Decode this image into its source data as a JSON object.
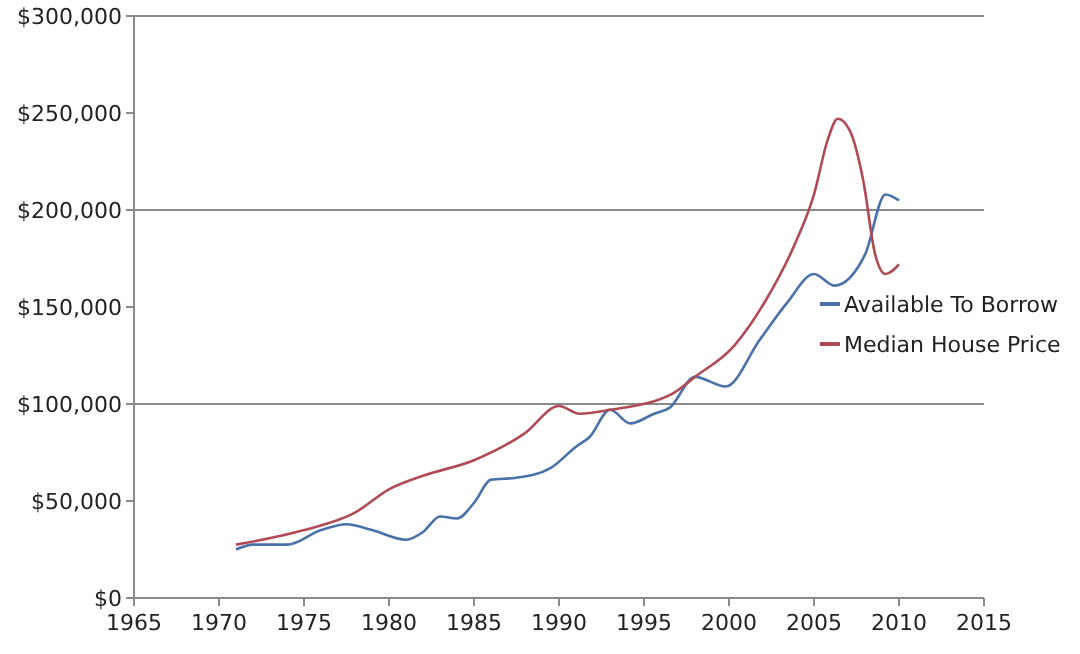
{
  "chart_data": {
    "type": "line",
    "xlim": [
      1965,
      2015
    ],
    "xticks": [
      1965,
      1970,
      1975,
      1980,
      1985,
      1990,
      1995,
      2000,
      2005,
      2010,
      2015
    ],
    "ylim": [
      0,
      300000
    ],
    "yticks": [
      {
        "value": 0,
        "label": "$0"
      },
      {
        "value": 50000,
        "label": "$50,000"
      },
      {
        "value": 100000,
        "label": "$100,000"
      },
      {
        "value": 150000,
        "label": "$150,000"
      },
      {
        "value": 200000,
        "label": "$200,000"
      },
      {
        "value": 250000,
        "label": "$250,000"
      },
      {
        "value": 300000,
        "label": "$300,000"
      }
    ],
    "grid": "y",
    "legend": "right",
    "series": [
      {
        "name": "Available To Borrow",
        "color": "#4a72a8",
        "x": [
          1971,
          1972,
          1974,
          1976,
          1977.5,
          1979,
          1981,
          1982,
          1983,
          1984,
          1985,
          1986,
          1987.5,
          1989.5,
          1991,
          1991.8,
          1993,
          1994.2,
          1995.6,
          1996.5,
          1998,
          1999.8,
          2001.8,
          2003.4,
          2005,
          2006.2,
          2008,
          2009.2,
          2010
        ],
        "values": [
          25000,
          27500,
          27500,
          35000,
          38000,
          35000,
          30000,
          34000,
          42000,
          41000,
          49000,
          61000,
          62000,
          67000,
          78000,
          83000,
          97000,
          90000,
          95000,
          98000,
          114000,
          109000,
          133000,
          152000,
          167000,
          161000,
          177000,
          208000,
          205000
        ]
      },
      {
        "name": "Median House Price",
        "color": "#b04a55",
        "x": [
          1971,
          1975,
          1978,
          1980,
          1982,
          1985,
          1988,
          1990,
          1991.2,
          1993,
          1996.6,
          1998,
          2000.3,
          2002.2,
          2003.8,
          2005,
          2005.8,
          2006.4,
          2007.1,
          2007.9,
          2008.6,
          2009.2,
          2010
        ],
        "values": [
          27500,
          35000,
          44000,
          56000,
          63000,
          71000,
          85000,
          99000,
          95000,
          97000,
          105000,
          114000,
          130000,
          154000,
          181000,
          208000,
          236000,
          247000,
          241000,
          215000,
          177000,
          167000,
          172000
        ]
      }
    ]
  }
}
